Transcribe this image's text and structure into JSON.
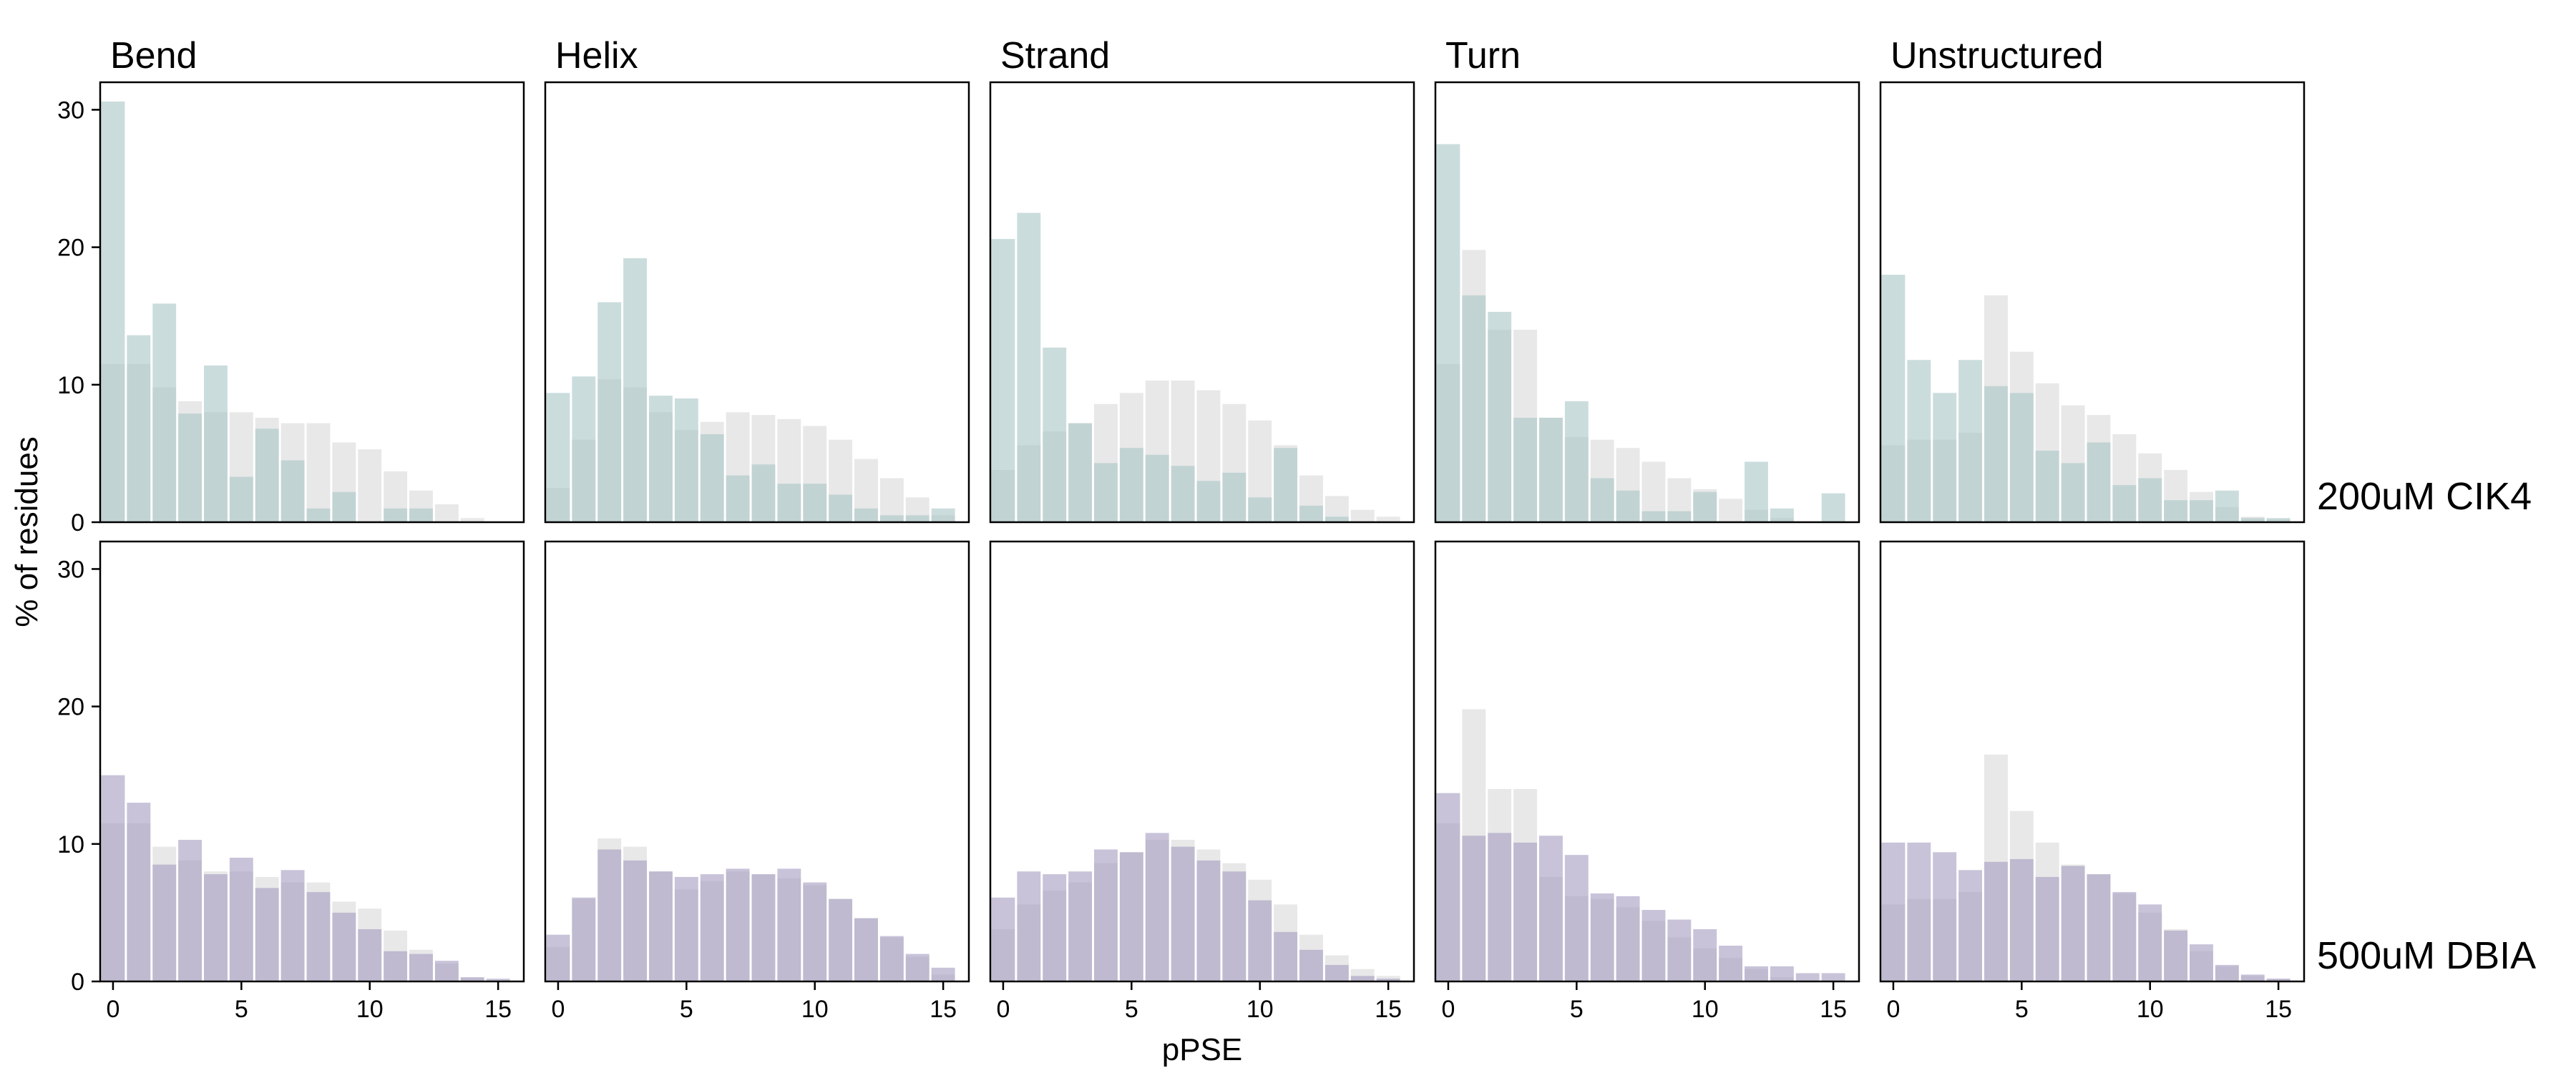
{
  "figure": {
    "ylabel": "% of residues",
    "xlabel": "pPSE"
  },
  "colors": {
    "background_bar": "#d9d9d9",
    "cik4_bar": "#a9c4c4",
    "dbia_bar": "#a39bc0",
    "panel_border": "#000000"
  },
  "chart_data": {
    "type": "bar",
    "layout": "facet-grid",
    "columns": [
      "Bend",
      "Helix",
      "Strand",
      "Turn",
      "Unstructured"
    ],
    "rows": [
      "200uM CIK4",
      "500uM DBIA"
    ],
    "x_ticks": [
      0,
      5,
      10,
      15
    ],
    "y_ticks": [
      0,
      10,
      20,
      30
    ],
    "xlim": [
      -0.5,
      16
    ],
    "ylim": [
      0,
      32
    ],
    "bins": [
      0,
      1,
      2,
      3,
      4,
      5,
      6,
      7,
      8,
      9,
      10,
      11,
      12,
      13,
      14,
      15
    ],
    "background": {
      "Bend": [
        11.5,
        11.5,
        9.8,
        8.8,
        8.0,
        8.0,
        7.6,
        7.2,
        7.2,
        5.8,
        5.3,
        3.7,
        2.3,
        1.3,
        0.3,
        0
      ],
      "Helix": [
        2.5,
        6.0,
        10.4,
        9.8,
        8.0,
        6.7,
        7.3,
        8.0,
        7.8,
        7.5,
        7.0,
        6.0,
        4.6,
        3.2,
        1.8,
        0.5
      ],
      "Strand": [
        3.8,
        5.6,
        6.6,
        7.2,
        8.6,
        9.4,
        10.3,
        10.3,
        9.6,
        8.6,
        7.4,
        5.6,
        3.4,
        1.9,
        0.9,
        0.4
      ],
      "Turn": [
        11.5,
        19.8,
        14.0,
        14.0,
        7.6,
        6.2,
        6.0,
        5.4,
        4.4,
        3.2,
        2.4,
        1.7,
        0.9,
        0.3,
        0,
        0
      ],
      "Unstructured": [
        5.6,
        6.0,
        6.0,
        6.5,
        16.5,
        12.4,
        10.1,
        8.5,
        7.8,
        6.4,
        5.0,
        3.8,
        2.2,
        1.1,
        0.4,
        0.2
      ]
    },
    "series": [
      {
        "name": "200uM CIK4",
        "values": {
          "Bend": [
            30.6,
            13.6,
            15.9,
            7.9,
            11.4,
            3.3,
            6.8,
            4.5,
            1.0,
            2.2,
            0,
            1.0,
            1.0,
            0,
            0,
            0
          ],
          "Helix": [
            9.4,
            10.6,
            16.0,
            19.2,
            9.2,
            9.0,
            6.4,
            3.4,
            4.2,
            2.8,
            2.8,
            2.0,
            1.0,
            0.5,
            0.5,
            1.0
          ],
          "Strand": [
            20.6,
            22.5,
            12.7,
            7.2,
            4.3,
            5.4,
            4.9,
            4.1,
            3.0,
            3.6,
            1.8,
            5.4,
            1.2,
            0.4,
            0,
            0
          ],
          "Turn": [
            27.5,
            16.5,
            15.3,
            7.6,
            7.6,
            8.8,
            3.2,
            2.3,
            0.8,
            0.8,
            2.2,
            0,
            4.4,
            1.0,
            0,
            2.1
          ],
          "Unstructured": [
            18.0,
            11.8,
            9.4,
            11.8,
            9.9,
            9.4,
            5.2,
            4.3,
            5.8,
            2.7,
            3.2,
            1.6,
            1.6,
            2.3,
            0.3,
            0.3
          ]
        }
      },
      {
        "name": "500uM DBIA",
        "values": {
          "Bend": [
            15.0,
            13.0,
            8.5,
            10.3,
            7.8,
            9.0,
            6.8,
            8.1,
            6.5,
            5.0,
            3.8,
            2.2,
            2.0,
            1.5,
            0.3,
            0.2
          ],
          "Helix": [
            3.4,
            6.1,
            9.6,
            8.8,
            8.0,
            7.6,
            7.8,
            8.2,
            7.8,
            8.2,
            7.2,
            6.0,
            4.6,
            3.3,
            2.0,
            1.0
          ],
          "Strand": [
            6.1,
            8.0,
            7.8,
            8.0,
            9.6,
            9.4,
            10.8,
            9.8,
            8.8,
            8.0,
            5.9,
            3.6,
            2.3,
            1.2,
            0.4,
            0.2
          ],
          "Turn": [
            13.7,
            10.6,
            10.8,
            10.1,
            10.6,
            9.2,
            6.4,
            6.2,
            5.2,
            4.5,
            3.8,
            2.6,
            1.1,
            1.1,
            0.6,
            0.6
          ],
          "Unstructured": [
            10.1,
            10.1,
            9.4,
            8.1,
            8.7,
            8.9,
            7.6,
            8.4,
            7.8,
            6.5,
            5.6,
            3.7,
            2.7,
            1.2,
            0.5,
            0.2
          ]
        }
      }
    ]
  }
}
